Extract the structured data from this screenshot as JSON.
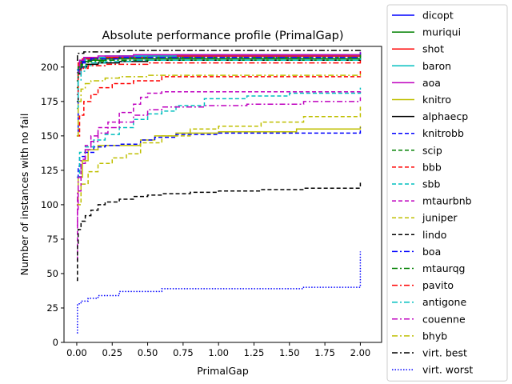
{
  "chart_data": {
    "type": "line",
    "title": "Absolute performance profile (PrimalGap)",
    "xlabel": "PrimalGap",
    "ylabel": "Number of instances with no fail",
    "xlim": [
      -0.09,
      2.15
    ],
    "ylim": [
      0,
      215
    ],
    "xticks": [
      0.0,
      0.25,
      0.5,
      0.75,
      1.0,
      1.25,
      1.5,
      1.75,
      2.0
    ],
    "xtick_labels": [
      "0.00",
      "0.25",
      "0.50",
      "0.75",
      "1.00",
      "1.25",
      "1.50",
      "1.75",
      "2.00"
    ],
    "yticks": [
      0,
      25,
      50,
      75,
      100,
      125,
      150,
      175,
      200
    ],
    "ytick_labels": [
      "0",
      "25",
      "50",
      "75",
      "100",
      "125",
      "150",
      "175",
      "200"
    ],
    "grid": false,
    "legend_position": "outside-right",
    "series": [
      {
        "name": "dicopt",
        "color": "#0000ff",
        "dash": "solid",
        "points": [
          [
            0,
            150
          ],
          [
            0.01,
            195
          ],
          [
            0.03,
            203
          ],
          [
            0.06,
            206
          ],
          [
            0.1,
            207
          ],
          [
            0.3,
            208
          ],
          [
            0.6,
            208
          ],
          [
            2.0,
            208
          ],
          [
            2.0,
            211
          ]
        ]
      },
      {
        "name": "muriqui",
        "color": "#008000",
        "dash": "solid",
        "points": [
          [
            0,
            185
          ],
          [
            0.01,
            200
          ],
          [
            0.03,
            204
          ],
          [
            0.08,
            205
          ],
          [
            0.2,
            206
          ],
          [
            2.0,
            206
          ],
          [
            2.0,
            209
          ]
        ]
      },
      {
        "name": "shot",
        "color": "#ff0000",
        "dash": "solid",
        "points": [
          [
            0,
            190
          ],
          [
            0.01,
            203
          ],
          [
            0.04,
            206
          ],
          [
            0.15,
            207
          ],
          [
            0.5,
            208
          ],
          [
            2.0,
            208
          ],
          [
            2.0,
            210
          ]
        ]
      },
      {
        "name": "baron",
        "color": "#00bfbf",
        "dash": "solid",
        "points": [
          [
            0,
            198
          ],
          [
            0.02,
            205
          ],
          [
            0.06,
            207
          ],
          [
            0.2,
            208
          ],
          [
            0.7,
            209
          ],
          [
            2.0,
            209
          ],
          [
            2.0,
            211
          ]
        ]
      },
      {
        "name": "aoa",
        "color": "#bf00bf",
        "dash": "solid",
        "points": [
          [
            0,
            196
          ],
          [
            0.02,
            205
          ],
          [
            0.05,
            207
          ],
          [
            0.15,
            208
          ],
          [
            0.4,
            209
          ],
          [
            2.0,
            209
          ],
          [
            2.0,
            211
          ]
        ]
      },
      {
        "name": "knitro",
        "color": "#bfbf00",
        "dash": "solid",
        "points": [
          [
            0,
            100
          ],
          [
            0.01,
            120
          ],
          [
            0.04,
            132
          ],
          [
            0.08,
            140
          ],
          [
            0.15,
            143
          ],
          [
            0.3,
            143
          ],
          [
            0.45,
            147
          ],
          [
            0.55,
            150
          ],
          [
            0.7,
            152
          ],
          [
            1.0,
            153
          ],
          [
            1.5,
            153
          ],
          [
            1.55,
            155
          ],
          [
            1.95,
            155
          ],
          [
            2.0,
            157
          ]
        ]
      },
      {
        "name": "alphaecp",
        "color": "#000000",
        "dash": "solid",
        "points": [
          [
            0,
            175
          ],
          [
            0.01,
            195
          ],
          [
            0.03,
            200
          ],
          [
            0.07,
            202
          ],
          [
            0.15,
            203
          ],
          [
            0.3,
            204
          ],
          [
            0.5,
            205
          ],
          [
            2.0,
            205
          ],
          [
            2.0,
            206
          ]
        ]
      },
      {
        "name": "knitrobb",
        "color": "#0000ff",
        "dash": "dashed",
        "points": [
          [
            0,
            120
          ],
          [
            0.01,
            128
          ],
          [
            0.02,
            135
          ],
          [
            0.06,
            138
          ],
          [
            0.12,
            142
          ],
          [
            0.2,
            143
          ],
          [
            0.3,
            144
          ],
          [
            0.45,
            147
          ],
          [
            0.55,
            149
          ],
          [
            0.7,
            151
          ],
          [
            1.0,
            152
          ],
          [
            2.0,
            153
          ],
          [
            2.0,
            156
          ]
        ]
      },
      {
        "name": "scip",
        "color": "#008000",
        "dash": "dashed",
        "points": [
          [
            0,
            190
          ],
          [
            0.01,
            200
          ],
          [
            0.04,
            204
          ],
          [
            0.1,
            206
          ],
          [
            0.3,
            207
          ],
          [
            2.0,
            207
          ],
          [
            2.0,
            209
          ]
        ]
      },
      {
        "name": "bbb",
        "color": "#ff0000",
        "dash": "dashed",
        "points": [
          [
            0,
            150
          ],
          [
            0.02,
            165
          ],
          [
            0.05,
            175
          ],
          [
            0.1,
            180
          ],
          [
            0.15,
            185
          ],
          [
            0.25,
            188
          ],
          [
            0.4,
            190
          ],
          [
            0.6,
            193
          ],
          [
            0.8,
            193
          ],
          [
            1.2,
            193
          ],
          [
            2.0,
            193
          ],
          [
            2.0,
            197
          ]
        ]
      },
      {
        "name": "sbb",
        "color": "#00bfbf",
        "dash": "dashed",
        "points": [
          [
            0,
            120
          ],
          [
            0.02,
            138
          ],
          [
            0.06,
            142
          ],
          [
            0.12,
            147
          ],
          [
            0.2,
            151
          ],
          [
            0.3,
            156
          ],
          [
            0.4,
            162
          ],
          [
            0.5,
            166
          ],
          [
            0.6,
            168
          ],
          [
            0.7,
            172
          ],
          [
            0.9,
            177
          ],
          [
            1.2,
            179
          ],
          [
            1.5,
            181
          ],
          [
            2.0,
            182
          ],
          [
            2.0,
            185
          ]
        ]
      },
      {
        "name": "mtaurbnb",
        "color": "#bf00bf",
        "dash": "dashed",
        "points": [
          [
            0,
            60
          ],
          [
            0.005,
            95
          ],
          [
            0.01,
            110
          ],
          [
            0.03,
            130
          ],
          [
            0.06,
            143
          ],
          [
            0.1,
            150
          ],
          [
            0.15,
            156
          ],
          [
            0.22,
            160
          ],
          [
            0.3,
            167
          ],
          [
            0.4,
            173
          ],
          [
            0.45,
            178
          ],
          [
            0.5,
            181
          ],
          [
            0.6,
            182
          ],
          [
            2.0,
            182
          ],
          [
            2.0,
            184
          ]
        ]
      },
      {
        "name": "juniper",
        "color": "#bfbf00",
        "dash": "dashed",
        "points": [
          [
            0,
            100
          ],
          [
            0.03,
            115
          ],
          [
            0.08,
            124
          ],
          [
            0.15,
            130
          ],
          [
            0.25,
            134
          ],
          [
            0.35,
            137
          ],
          [
            0.45,
            145
          ],
          [
            0.6,
            150
          ],
          [
            0.8,
            155
          ],
          [
            1.0,
            157
          ],
          [
            1.3,
            160
          ],
          [
            1.6,
            164
          ],
          [
            2.0,
            168
          ],
          [
            2.0,
            172
          ]
        ]
      },
      {
        "name": "lindo",
        "color": "#000000",
        "dash": "dashed",
        "points": [
          [
            0,
            45
          ],
          [
            0.005,
            72
          ],
          [
            0.01,
            82
          ],
          [
            0.03,
            88
          ],
          [
            0.06,
            92
          ],
          [
            0.1,
            96
          ],
          [
            0.15,
            100
          ],
          [
            0.2,
            102
          ],
          [
            0.3,
            104
          ],
          [
            0.4,
            106
          ],
          [
            0.5,
            107
          ],
          [
            0.6,
            108
          ],
          [
            0.8,
            109
          ],
          [
            1.0,
            110
          ],
          [
            1.3,
            111
          ],
          [
            1.6,
            112
          ],
          [
            2.0,
            113
          ],
          [
            2.0,
            116
          ]
        ]
      },
      {
        "name": "boa",
        "color": "#0000ff",
        "dash": "dashdot",
        "points": [
          [
            0,
            180
          ],
          [
            0.01,
            198
          ],
          [
            0.04,
            204
          ],
          [
            0.1,
            206
          ],
          [
            0.3,
            207
          ],
          [
            2.0,
            207
          ],
          [
            2.0,
            210
          ]
        ]
      },
      {
        "name": "mtaurqg",
        "color": "#008000",
        "dash": "dashdot",
        "points": [
          [
            0,
            185
          ],
          [
            0.01,
            198
          ],
          [
            0.03,
            202
          ],
          [
            0.08,
            204
          ],
          [
            0.2,
            205
          ],
          [
            2.0,
            205
          ],
          [
            2.0,
            208
          ]
        ]
      },
      {
        "name": "pavito",
        "color": "#ff0000",
        "dash": "dashdot",
        "points": [
          [
            0,
            180
          ],
          [
            0.01,
            195
          ],
          [
            0.03,
            199
          ],
          [
            0.08,
            201
          ],
          [
            0.2,
            202
          ],
          [
            0.5,
            203
          ],
          [
            2.0,
            203
          ],
          [
            2.0,
            205
          ]
        ]
      },
      {
        "name": "antigone",
        "color": "#00bfbf",
        "dash": "dashdot",
        "points": [
          [
            0,
            170
          ],
          [
            0.01,
            190
          ],
          [
            0.03,
            197
          ],
          [
            0.06,
            201
          ],
          [
            0.1,
            203
          ],
          [
            0.2,
            204
          ],
          [
            0.4,
            205
          ],
          [
            2.0,
            205
          ],
          [
            2.0,
            208
          ]
        ]
      },
      {
        "name": "couenne",
        "color": "#bf00bf",
        "dash": "dashdot",
        "points": [
          [
            0,
            85
          ],
          [
            0.005,
            110
          ],
          [
            0.01,
            120
          ],
          [
            0.03,
            133
          ],
          [
            0.06,
            140
          ],
          [
            0.1,
            146
          ],
          [
            0.15,
            152
          ],
          [
            0.22,
            156
          ],
          [
            0.3,
            160
          ],
          [
            0.4,
            165
          ],
          [
            0.5,
            169
          ],
          [
            0.6,
            171
          ],
          [
            0.9,
            172
          ],
          [
            1.2,
            173
          ],
          [
            1.6,
            175
          ],
          [
            2.0,
            176
          ],
          [
            2.0,
            178
          ]
        ]
      },
      {
        "name": "bhyb",
        "color": "#bfbf00",
        "dash": "dashdot",
        "points": [
          [
            0,
            150
          ],
          [
            0.01,
            175
          ],
          [
            0.03,
            184
          ],
          [
            0.06,
            188
          ],
          [
            0.1,
            190
          ],
          [
            0.2,
            192
          ],
          [
            0.3,
            193
          ],
          [
            0.5,
            194
          ],
          [
            2.0,
            194
          ],
          [
            2.0,
            196
          ]
        ]
      },
      {
        "name": "virt. best",
        "color": "#000000",
        "dash": "dashdot",
        "points": [
          [
            0,
            205
          ],
          [
            0.005,
            210
          ],
          [
            0.05,
            211
          ],
          [
            0.3,
            212
          ],
          [
            2.0,
            212
          ],
          [
            2.0,
            213
          ]
        ]
      },
      {
        "name": "virt. worst",
        "color": "#0000ff",
        "dash": "dotted",
        "points": [
          [
            0,
            7
          ],
          [
            0.005,
            28
          ],
          [
            0.03,
            30
          ],
          [
            0.08,
            32
          ],
          [
            0.15,
            34
          ],
          [
            0.3,
            37
          ],
          [
            0.6,
            39
          ],
          [
            1.0,
            39
          ],
          [
            1.55,
            39
          ],
          [
            1.6,
            40
          ],
          [
            2.0,
            40
          ],
          [
            2.0,
            66
          ]
        ]
      }
    ]
  }
}
